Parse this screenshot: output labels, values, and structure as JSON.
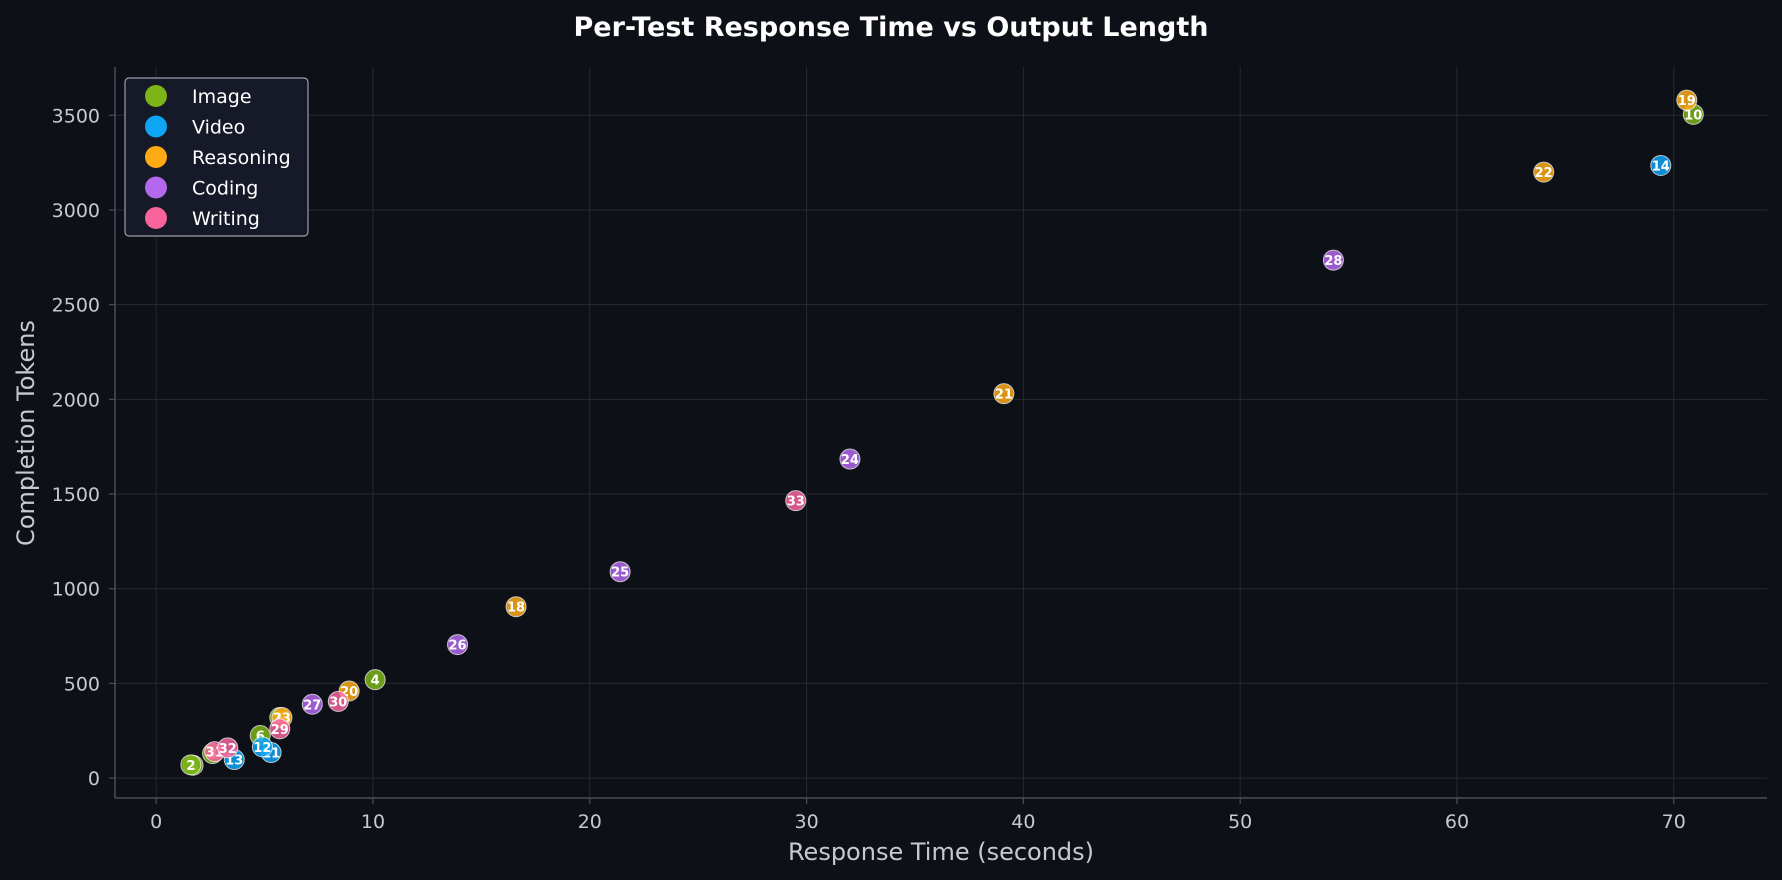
{
  "chart_data": {
    "type": "scatter",
    "title": "Per-Test Response Time vs Output Length",
    "xlabel": "Response Time (seconds)",
    "ylabel": "Completion Tokens",
    "xlim": [
      -1.9,
      74.3
    ],
    "ylim": [
      -105,
      3755
    ],
    "x_ticks": [
      0,
      10,
      20,
      30,
      40,
      50,
      60,
      70
    ],
    "y_ticks": [
      0,
      500,
      1000,
      1500,
      2000,
      2500,
      3000,
      3500
    ],
    "grid": true,
    "legend_position": "top-left",
    "series": [
      {
        "name": "Image",
        "color": "#7cb518",
        "points": [
          {
            "label": "1",
            "x": 1.7,
            "y": 68
          },
          {
            "label": "2",
            "x": 1.6,
            "y": 70
          },
          {
            "label": "3",
            "x": 2.6,
            "y": 130
          },
          {
            "label": "4",
            "x": 10.1,
            "y": 520
          },
          {
            "label": "5",
            "x": 5.7,
            "y": 320
          },
          {
            "label": "6",
            "x": 4.8,
            "y": 225
          },
          {
            "label": "10",
            "x": 70.9,
            "y": 3505
          }
        ]
      },
      {
        "name": "Video",
        "color": "#0ea5f5",
        "points": [
          {
            "label": "11",
            "x": 5.3,
            "y": 135
          },
          {
            "label": "12",
            "x": 4.9,
            "y": 165
          },
          {
            "label": "13",
            "x": 3.6,
            "y": 98
          },
          {
            "label": "14",
            "x": 69.4,
            "y": 3235
          }
        ]
      },
      {
        "name": "Reasoning",
        "color": "#fdaa15",
        "points": [
          {
            "label": "18",
            "x": 16.6,
            "y": 905
          },
          {
            "label": "19",
            "x": 70.6,
            "y": 3580
          },
          {
            "label": "20",
            "x": 8.9,
            "y": 460
          },
          {
            "label": "21",
            "x": 39.1,
            "y": 2030
          },
          {
            "label": "22",
            "x": 64.0,
            "y": 3200
          },
          {
            "label": "23",
            "x": 5.8,
            "y": 320
          }
        ]
      },
      {
        "name": "Coding",
        "color": "#b468ee",
        "points": [
          {
            "label": "24",
            "x": 32.0,
            "y": 1685
          },
          {
            "label": "25",
            "x": 21.4,
            "y": 1090
          },
          {
            "label": "26",
            "x": 13.9,
            "y": 705
          },
          {
            "label": "27",
            "x": 7.2,
            "y": 390
          },
          {
            "label": "28",
            "x": 54.3,
            "y": 2735
          }
        ]
      },
      {
        "name": "Writing",
        "color": "#f7649c",
        "points": [
          {
            "label": "29",
            "x": 5.7,
            "y": 260
          },
          {
            "label": "30",
            "x": 8.4,
            "y": 405
          },
          {
            "label": "31",
            "x": 2.7,
            "y": 140
          },
          {
            "label": "32",
            "x": 3.3,
            "y": 160
          },
          {
            "label": "33",
            "x": 29.5,
            "y": 1465
          }
        ]
      }
    ]
  }
}
